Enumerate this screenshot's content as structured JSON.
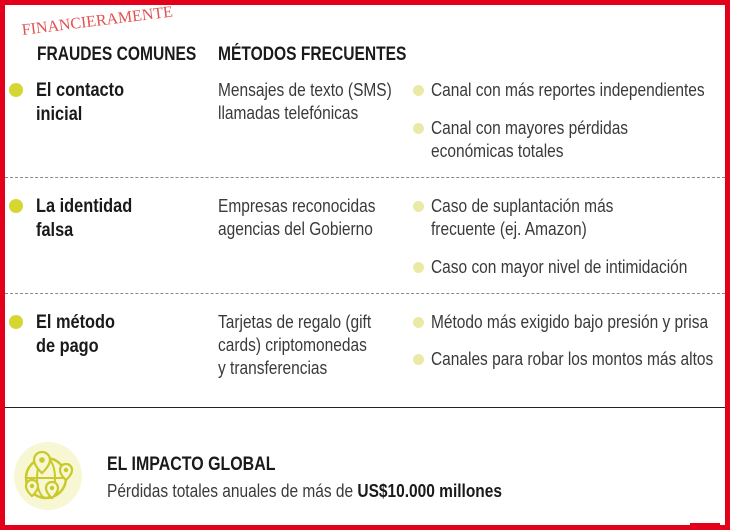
{
  "logo": {
    "text": "FINANCIERAMENTE"
  },
  "headers": {
    "col1": "FRAUDES COMUNES",
    "col2": "MÉTODOS FRECUENTES"
  },
  "rows": [
    {
      "title_lines": [
        "El contacto",
        "inicial"
      ],
      "method_lines": [
        "Mensajes de texto (SMS)",
        "llamadas telefónicas"
      ],
      "notes": [
        {
          "lines": [
            "Canal con más reportes independientes"
          ]
        },
        {
          "lines": [
            "Canal con mayores pérdidas",
            "económicas totales"
          ]
        }
      ]
    },
    {
      "title_lines": [
        "La identidad",
        "falsa"
      ],
      "method_lines": [
        "Empresas reconocidas",
        "agencias del Gobierno"
      ],
      "notes": [
        {
          "lines": [
            "Caso de suplantación más",
            "frecuente (ej. Amazon)"
          ]
        },
        {
          "lines": [
            "Caso con mayor nivel de intimidación"
          ]
        }
      ]
    },
    {
      "title_lines": [
        "El método",
        "de pago"
      ],
      "method_lines": [
        "Tarjetas de regalo (gift",
        "cards) criptomonedas",
        "y transferencias"
      ],
      "notes": [
        {
          "lines": [
            "Método más exigido bajo presión y prisa"
          ]
        },
        {
          "lines": [
            "Canales para robar los montos más altos"
          ]
        }
      ]
    }
  ],
  "impact": {
    "icon": "globe-location-icon",
    "title": "EL IMPACTO GLOBAL",
    "text_prefix": "Pérdidas totales anuales de más de ",
    "text_highlight": "US$10.000 millones"
  },
  "colors": {
    "frame": "#e3001b",
    "bullet": "#d6d633",
    "note_bullet": "#eaeaa6"
  }
}
